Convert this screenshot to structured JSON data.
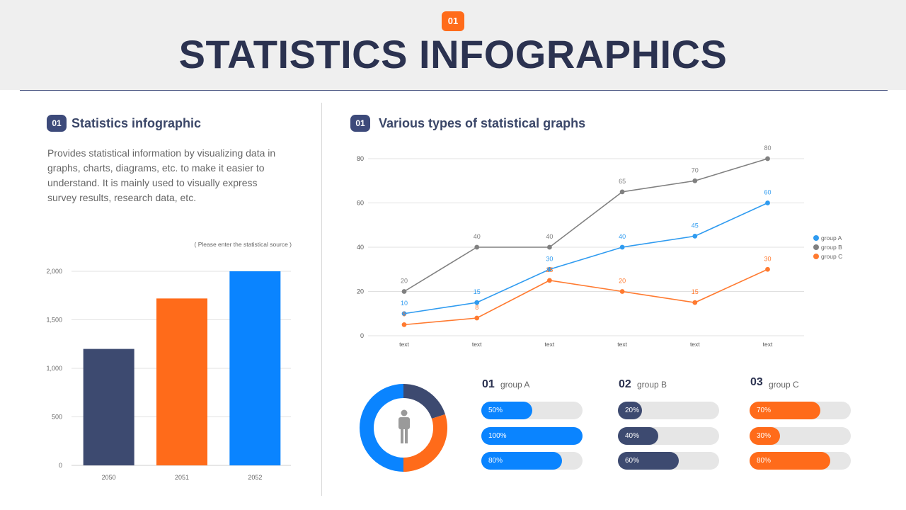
{
  "header": {
    "badge": "01",
    "title": "STATISTICS INFOGRAPHICS"
  },
  "left": {
    "badge": "01",
    "title": "Statistics  infographic",
    "description": "Provides statistical information by visualizing data in graphs, charts, diagrams, etc. to make it easier to understand. It is mainly used to visually express survey results, research data, etc.",
    "source": "( Please enter the statistical source )"
  },
  "right": {
    "badge": "01",
    "title": "Various types of statistical graphs"
  },
  "colors": {
    "navy": "#3d4a70",
    "orange": "#ff6b1a",
    "blue": "#0a84ff",
    "gray": "#808080",
    "track": "#e6e6e6"
  },
  "chart_data": [
    {
      "type": "bar",
      "categories": [
        "2050",
        "2051",
        "2052"
      ],
      "values": [
        1200,
        1720,
        2000
      ],
      "colors": [
        "#3d4a70",
        "#ff6b1a",
        "#0a84ff"
      ],
      "yticks": [
        "0",
        "500",
        "1,000",
        "1,500",
        "2,000"
      ],
      "ylim": [
        0,
        2000
      ],
      "grid": true
    },
    {
      "type": "line",
      "categories": [
        "text",
        "text",
        "text",
        "text",
        "text",
        "text"
      ],
      "yticks": [
        "0",
        "20",
        "40",
        "60",
        "80"
      ],
      "ylim": [
        0,
        80
      ],
      "grid": true,
      "legend_position": "right",
      "series": [
        {
          "name": "group A",
          "color": "#2f9bf0",
          "values": [
            10,
            15,
            30,
            40,
            45,
            60
          ]
        },
        {
          "name": "group B",
          "color": "#808080",
          "values": [
            20,
            40,
            40,
            65,
            70,
            80
          ]
        },
        {
          "name": "group C",
          "color": "#ff7a30",
          "values": [
            5,
            8,
            25,
            20,
            15,
            30
          ]
        }
      ]
    },
    {
      "type": "pie",
      "style": "donut",
      "values": [
        20,
        30,
        50
      ],
      "colors": [
        "#3d4a70",
        "#ff6b1a",
        "#0a84ff"
      ]
    }
  ],
  "groups": [
    {
      "num": "01",
      "name": "group A",
      "color": "#0a84ff",
      "bars": [
        {
          "label": "50%",
          "value": 50
        },
        {
          "label": "100%",
          "value": 100
        },
        {
          "label": "80%",
          "value": 80
        }
      ]
    },
    {
      "num": "02",
      "name": "group B",
      "color": "#3d4a70",
      "bars": [
        {
          "label": "20%",
          "value": 20
        },
        {
          "label": "40%",
          "value": 40
        },
        {
          "label": "60%",
          "value": 60
        }
      ]
    },
    {
      "num": "03",
      "name": "group C",
      "color": "#ff6b1a",
      "bars": [
        {
          "label": "70%",
          "value": 70
        },
        {
          "label": "30%",
          "value": 30
        },
        {
          "label": "80%",
          "value": 80
        }
      ]
    }
  ]
}
